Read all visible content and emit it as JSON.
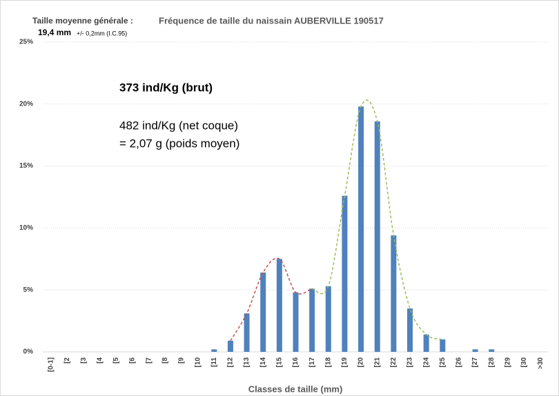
{
  "chart_data": {
    "type": "bar",
    "title": "Fréquence de taille du naissain AUBERVILLE 190517",
    "annotations": {
      "mean_label": "Taille moyenne générale :",
      "mean_value": "19,4 mm",
      "mean_ci": "+/- 0,2mm (I.C.95)",
      "raw_count": "373 ind/Kg (brut)",
      "net_count": "482 ind/Kg (net coque)",
      "mean_weight": "= 2,07 g (poids moyen)"
    },
    "x_label": "Classes de taille (mm)",
    "categories": [
      "[0-1]",
      "[2",
      "[3",
      "[4",
      "[5",
      "[6",
      "[7",
      "[8",
      "[9",
      "[10",
      "[11",
      "[12",
      "[13",
      "[14",
      "[15",
      "[16",
      "[17",
      "[18",
      "[19",
      "[20",
      "[21",
      "[22",
      "[23",
      "[24",
      "[25",
      "[26",
      "[27",
      "[28",
      "[29",
      "[30",
      ">30"
    ],
    "values": [
      0,
      0,
      0,
      0,
      0,
      0,
      0,
      0,
      0,
      0,
      0.2,
      0.9,
      3.1,
      6.4,
      7.5,
      4.8,
      5.1,
      5.3,
      12.6,
      19.8,
      18.6,
      9.4,
      3.5,
      1.4,
      1.0,
      0,
      0.2,
      0.2,
      0,
      0,
      0
    ],
    "color": "#4f81bd",
    "ylim": [
      0,
      25
    ],
    "yticks": [
      {
        "value": 0,
        "label": "0%"
      },
      {
        "value": 5,
        "label": "5%"
      },
      {
        "value": 10,
        "label": "10%"
      },
      {
        "value": 15,
        "label": "15%"
      },
      {
        "value": 20,
        "label": "20%"
      },
      {
        "value": 25,
        "label": "25%"
      }
    ],
    "grid": true,
    "fit_curves": [
      {
        "color": "#c0504d",
        "start": "[12",
        "end": "[17"
      },
      {
        "color": "#9bbb59",
        "start": "[17",
        "end": "[25"
      }
    ]
  }
}
